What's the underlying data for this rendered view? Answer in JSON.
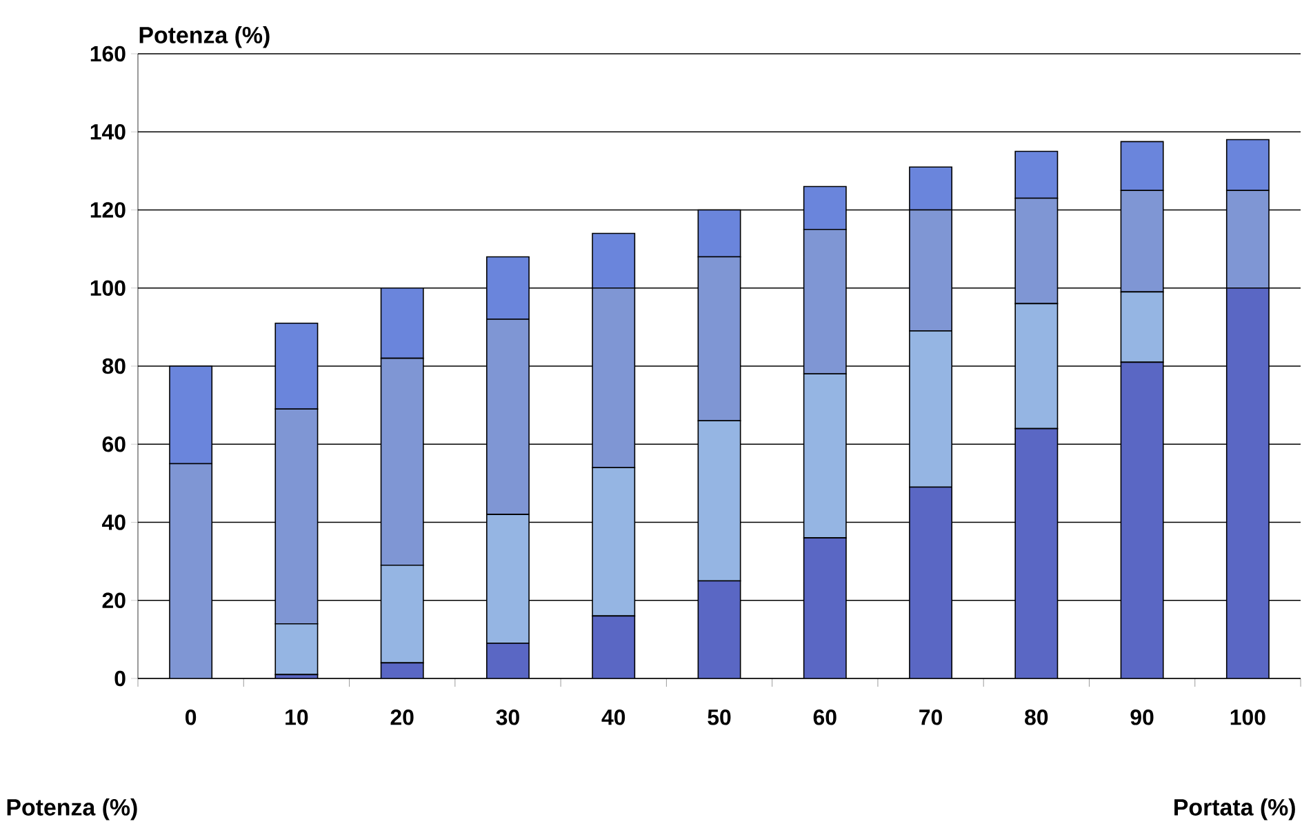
{
  "chart_data": {
    "type": "bar",
    "stacked": true,
    "ylabel": "Potenza (%)",
    "xlabel": "Portata (%)",
    "annotations": [
      "Potenza (%)"
    ],
    "categories": [
      "0",
      "10",
      "20",
      "30",
      "40",
      "50",
      "60",
      "70",
      "80",
      "90",
      "100"
    ],
    "series": [
      {
        "color": "#5a67c4",
        "values": [
          0,
          1,
          4,
          9,
          16,
          25,
          36,
          49,
          64,
          81,
          100
        ]
      },
      {
        "color": "#95b5e3",
        "values": [
          0,
          13,
          25,
          33,
          38,
          41,
          42,
          40,
          32,
          18,
          0
        ]
      },
      {
        "color": "#7f96d4",
        "values": [
          55,
          55,
          53,
          50,
          46,
          42,
          37,
          31,
          27,
          26,
          25
        ]
      },
      {
        "color": "#6a85dc",
        "values": [
          25,
          22,
          18,
          16,
          14,
          12,
          11,
          11,
          12,
          12.5,
          13
        ]
      }
    ],
    "ylim": [
      0,
      160
    ],
    "yticks": [
      0,
      20,
      40,
      60,
      80,
      100,
      120,
      140,
      160
    ],
    "grid": "y"
  }
}
